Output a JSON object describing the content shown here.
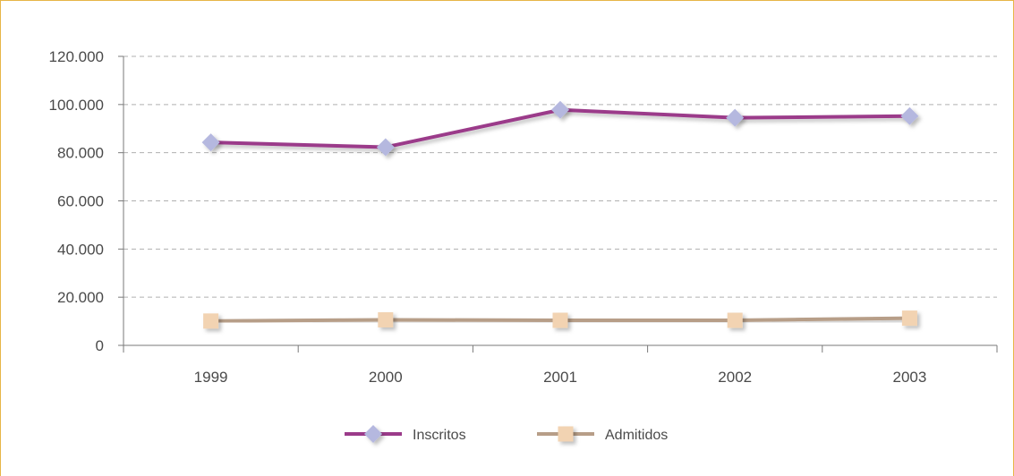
{
  "chart_data": {
    "type": "line",
    "x": [
      "1999",
      "2000",
      "2001",
      "2002",
      "2003"
    ],
    "ylim": [
      0,
      120000
    ],
    "yticks": [
      0,
      20000,
      40000,
      60000,
      80000,
      100000,
      120000
    ],
    "ytick_labels": [
      "0",
      "20.000",
      "40.000",
      "60.000",
      "80.000",
      "100.000",
      "120.000"
    ],
    "grid": true,
    "legend_position": "bottom",
    "series": [
      {
        "name": "Inscritos",
        "values": [
          84300,
          82300,
          97800,
          94500,
          95200
        ],
        "color": "#9b3b8a",
        "marker": "diamond",
        "marker_color": "#b5b8df"
      },
      {
        "name": "Admitidos",
        "values": [
          10100,
          10600,
          10400,
          10400,
          11300
        ],
        "color": "#b79e88",
        "marker": "square",
        "marker_color": "#f2d3b2"
      }
    ],
    "colors": {
      "frame": "#e7b548",
      "axis": "#7a7a7a",
      "grid": "#b0b0b0"
    }
  }
}
